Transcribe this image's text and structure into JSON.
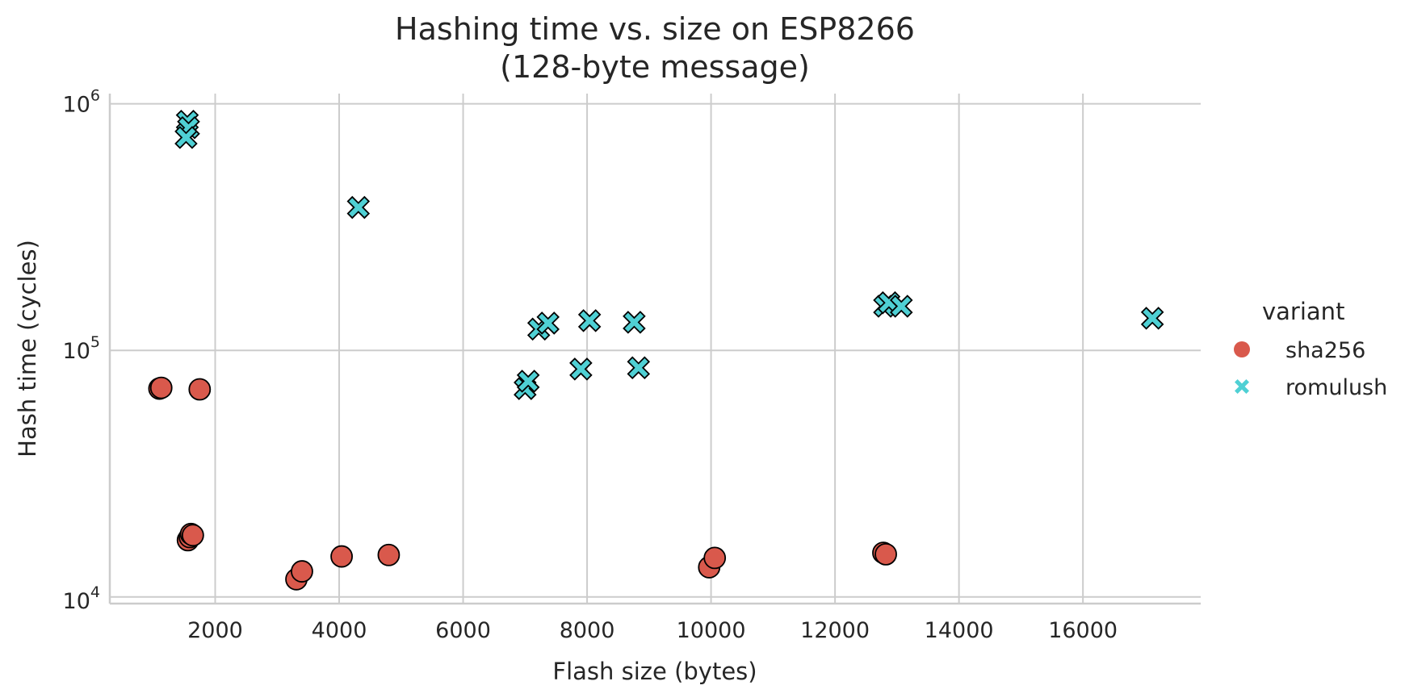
{
  "chart_data": {
    "type": "scatter",
    "title": "Hashing time vs. size on ESP8266",
    "subtitle": "(128-byte message)",
    "xlabel": "Flash size (bytes)",
    "ylabel": "Hash time (cycles)",
    "xscale": "linear",
    "yscale": "log",
    "xlim": [
      300,
      17900
    ],
    "ylim": [
      9400,
      1100000
    ],
    "xticks": [
      2000,
      4000,
      6000,
      8000,
      10000,
      12000,
      14000,
      16000
    ],
    "xtick_labels": [
      "2000",
      "4000",
      "6000",
      "8000",
      "10000",
      "12000",
      "14000",
      "16000"
    ],
    "yticks": [
      10000,
      100000,
      1000000
    ],
    "ytick_labels": [
      {
        "base": "10",
        "exp": "4"
      },
      {
        "base": "10",
        "exp": "5"
      },
      {
        "base": "10",
        "exp": "6"
      }
    ],
    "grid": true,
    "legend": {
      "title": "variant",
      "placement": "right"
    },
    "series": [
      {
        "name": "sha256",
        "marker": "circle",
        "color": "#d9594c",
        "points": [
          [
            1100,
            70000
          ],
          [
            1130,
            70500
          ],
          [
            1750,
            69500
          ],
          [
            1560,
            17000
          ],
          [
            1590,
            17500
          ],
          [
            1610,
            18000
          ],
          [
            1640,
            17800
          ],
          [
            3310,
            11800
          ],
          [
            3400,
            12700
          ],
          [
            4040,
            14600
          ],
          [
            4800,
            14800
          ],
          [
            9970,
            13200
          ],
          [
            10060,
            14400
          ],
          [
            12780,
            15100
          ],
          [
            12820,
            14900
          ]
        ]
      },
      {
        "name": "romulush",
        "marker": "x",
        "color": "#4fd0d4",
        "points": [
          [
            1550,
            850000
          ],
          [
            1570,
            800000
          ],
          [
            1530,
            730000
          ],
          [
            4310,
            380000
          ],
          [
            7000,
            70000
          ],
          [
            7050,
            75000
          ],
          [
            7220,
            122000
          ],
          [
            7370,
            129000
          ],
          [
            7900,
            84000
          ],
          [
            8040,
            132000
          ],
          [
            8760,
            130000
          ],
          [
            8830,
            85000
          ],
          [
            12800,
            151000
          ],
          [
            12870,
            156000
          ],
          [
            13070,
            151000
          ],
          [
            17120,
            135000
          ]
        ]
      }
    ]
  }
}
